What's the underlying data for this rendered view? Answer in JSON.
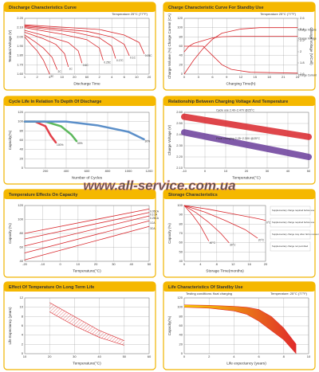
{
  "watermark": "www.all-service.com.ua",
  "chart_data": [
    {
      "type": "line",
      "title": "Discharge Characteristics Curve",
      "xlabel": "Discharge Time",
      "ylabel": "Terminal Voltage (V)",
      "annotations": [
        "Temperature 25°C (77°F)"
      ],
      "grid": true,
      "xlim": [
        0,
        10
      ],
      "xticks": [
        {
          "value": 0,
          "label": "1"
        },
        {
          "value": 1,
          "label": "2"
        },
        {
          "value": 2,
          "label": "4"
        },
        {
          "value": 3,
          "label": "10"
        },
        {
          "value": 4,
          "label": "20"
        },
        {
          "value": 5,
          "label": "60"
        },
        {
          "value": 6,
          "label": "2"
        },
        {
          "value": 7,
          "label": "4"
        },
        {
          "value": 8,
          "label": "6"
        },
        {
          "value": 9,
          "label": "10"
        },
        {
          "value": 10,
          "label": "20"
        }
      ],
      "ylim": [
        1.6,
        2.2
      ],
      "yticks": [
        {
          "value": 1.6,
          "label": "1.60"
        },
        {
          "value": 1.7,
          "label": "1.70"
        },
        {
          "value": 1.8,
          "label": "1.80"
        },
        {
          "value": 1.9,
          "label": "1.90"
        },
        {
          "value": 2,
          "label": "2.00"
        },
        {
          "value": 2.1,
          "label": "2.10"
        },
        {
          "value": 2.2,
          "label": "2.20"
        }
      ],
      "series": [
        {
          "name": "3C",
          "color": "#d9262b",
          "x": [
            0,
            0.5,
            1,
            1.5,
            2
          ],
          "values": [
            2.0,
            1.92,
            1.85,
            1.75,
            1.6
          ]
        },
        {
          "name": "2C",
          "color": "#d9262b",
          "x": [
            0,
            0.8,
            1.5,
            2.2,
            2.6
          ],
          "values": [
            2.02,
            1.95,
            1.88,
            1.78,
            1.65
          ]
        },
        {
          "name": "1C",
          "color": "#d9262b",
          "x": [
            0,
            1.5,
            2.5,
            3.2,
            3.5
          ],
          "values": [
            2.05,
            1.98,
            1.92,
            1.82,
            1.68
          ]
        },
        {
          "name": "0.6C",
          "color": "#d9262b",
          "x": [
            0,
            2,
            3.5,
            4.3,
            4.6
          ],
          "values": [
            2.07,
            2.0,
            1.94,
            1.85,
            1.72
          ]
        },
        {
          "name": "0.25C",
          "color": "#d9262b",
          "x": [
            0,
            3,
            5,
            6,
            6.3
          ],
          "values": [
            2.1,
            2.03,
            1.97,
            1.88,
            1.75
          ]
        },
        {
          "name": "0.17C",
          "color": "#d9262b",
          "x": [
            0,
            4,
            6,
            7,
            7.3
          ],
          "values": [
            2.11,
            2.05,
            1.99,
            1.9,
            1.77
          ]
        },
        {
          "name": "0.1C",
          "color": "#d9262b",
          "x": [
            0,
            5,
            7,
            8,
            8.4
          ],
          "values": [
            2.12,
            2.06,
            2.0,
            1.92,
            1.8
          ]
        },
        {
          "name": "0.05C",
          "color": "#d9262b",
          "x": [
            0,
            6,
            8,
            9.2,
            9.6
          ],
          "values": [
            2.13,
            2.08,
            2.02,
            1.94,
            1.82
          ]
        }
      ]
    },
    {
      "type": "line",
      "title": "Charge Characteristic Curve For Standby Use",
      "xlabel": "Charging Time(h)",
      "ylabel": "Charge Volume (%) Charge Current (CA)",
      "y2label": "Charge Voltage (V/Cell)",
      "annotations": [
        "Temperature 25°C (77°F)"
      ],
      "grid": true,
      "xlim": [
        0,
        24
      ],
      "xticks": [
        0,
        3,
        6,
        9,
        12,
        15,
        18,
        21,
        24
      ],
      "ylim": [
        0,
        120
      ],
      "yticks": [
        0,
        20,
        40,
        60,
        80,
        100,
        120
      ],
      "y2lim": [
        1.6,
        2.6
      ],
      "y2ticks": [
        1.6,
        1.8,
        2,
        2.2,
        2.4,
        2.6
      ],
      "series": [
        {
          "name": "Charge Volume",
          "color": "#d9262b",
          "x": [
            0,
            2,
            4,
            6,
            8,
            12,
            16,
            20,
            24
          ],
          "values": [
            0,
            30,
            55,
            75,
            88,
            97,
            100,
            100,
            100
          ]
        },
        {
          "name": "Charge Voltage",
          "color": "#d9262b",
          "axis": "y2",
          "x": [
            0,
            1,
            2,
            4,
            6,
            8,
            12,
            24
          ],
          "values": [
            2.0,
            2.1,
            2.15,
            2.2,
            2.25,
            2.27,
            2.28,
            2.28
          ]
        },
        {
          "name": "Charge Current",
          "color": "#d9262b",
          "x": [
            0,
            4,
            6,
            8,
            10,
            14,
            24
          ],
          "values": [
            60,
            60,
            40,
            20,
            10,
            4,
            2
          ]
        }
      ]
    },
    {
      "type": "line",
      "title": "Cycle Life In Relation To Depth Of Discharge",
      "xlabel": "Number of Cycles",
      "ylabel": "Capacity(%)",
      "grid": true,
      "xlim": [
        0,
        1200
      ],
      "xticks": [
        200,
        400,
        600,
        800,
        1000,
        1200
      ],
      "ylim": [
        0,
        120
      ],
      "yticks": [
        0,
        20,
        40,
        60,
        80,
        100,
        120
      ],
      "series": [
        {
          "name": "100%",
          "color": "#e3414a",
          "width": 2.5,
          "x": [
            0,
            100,
            200,
            250,
            300
          ],
          "values": [
            100,
            100,
            90,
            70,
            55
          ]
        },
        {
          "name": "50%",
          "color": "#5cb85c",
          "width": 2.5,
          "x": [
            0,
            200,
            350,
            450,
            500
          ],
          "values": [
            100,
            100,
            90,
            72,
            58
          ]
        },
        {
          "name": "30%",
          "color": "#5b8fc9",
          "width": 2.5,
          "x": [
            0,
            400,
            700,
            1000,
            1150
          ],
          "values": [
            100,
            100,
            92,
            78,
            62
          ]
        }
      ]
    },
    {
      "type": "line",
      "title": "Relationship Between Charging Voltage And Temperature",
      "xlabel": "Temperature(°C)",
      "ylabel": "Charge Voltage (V)",
      "grid": true,
      "xlim": [
        -10,
        50
      ],
      "xticks": [
        -10,
        0,
        10,
        20,
        30,
        40,
        50
      ],
      "ylim": [
        2.1,
        2.6
      ],
      "yticks": [
        {
          "value": 2.1,
          "label": "2.10"
        },
        {
          "value": 2.2,
          "label": "2.20"
        },
        {
          "value": 2.3,
          "label": "2.30"
        },
        {
          "value": 2.4,
          "label": "2.40"
        },
        {
          "value": 2.5,
          "label": "2.50"
        },
        {
          "value": 2.6,
          "label": "2.60"
        }
      ],
      "series": [
        {
          "name": "Cycle use 2.40~2.47V @25°C",
          "color": "#d9262b",
          "width": 8,
          "x": [
            -10,
            50
          ],
          "values": [
            2.56,
            2.38
          ]
        },
        {
          "name": "Float charging 2.25~2.30V @25°C",
          "color": "#6a3d9a",
          "width": 8,
          "x": [
            -10,
            50
          ],
          "values": [
            2.42,
            2.2
          ]
        }
      ]
    },
    {
      "type": "line",
      "title": "Temperature Effects On Capacity",
      "xlabel": "Temperature(°C)",
      "ylabel": "Capacity (%)",
      "grid": true,
      "xlim": [
        -20,
        50
      ],
      "xticks": [
        -20,
        -10,
        0,
        10,
        20,
        30,
        40,
        50
      ],
      "ylim": [
        40,
        120
      ],
      "yticks": [
        40,
        60,
        80,
        100,
        120
      ],
      "series": [
        {
          "name": "0.05CA",
          "color": "#d9262b",
          "x": [
            -20,
            50
          ],
          "values": [
            80,
            115
          ]
        },
        {
          "name": "0.1CA",
          "color": "#d9262b",
          "x": [
            -20,
            50
          ],
          "values": [
            72,
            110
          ]
        },
        {
          "name": "0.25CA",
          "color": "#d9262b",
          "x": [
            -20,
            50
          ],
          "values": [
            62,
            105
          ]
        },
        {
          "name": "1CA",
          "color": "#d9262b",
          "x": [
            -20,
            50
          ],
          "values": [
            52,
            98
          ]
        },
        {
          "name": "3CA",
          "color": "#d9262b",
          "x": [
            -20,
            50
          ],
          "values": [
            42,
            90
          ]
        }
      ]
    },
    {
      "type": "line",
      "title": "Storage Characteristics",
      "xlabel": "Storage Time(months)",
      "ylabel": "Capacity (%)",
      "grid": true,
      "xlim": [
        0,
        20
      ],
      "xticks": [
        0,
        4,
        8,
        12,
        16,
        20
      ],
      "ylim": [
        40,
        100
      ],
      "yticks": [
        40,
        50,
        60,
        70,
        80,
        90,
        100
      ],
      "notes": [
        "Supplementary charge required before use",
        "Supplementary charge required before use",
        "Supplementary charge may often fail to recover",
        "Supplementary charge not permitted"
      ],
      "series": [
        {
          "name": "40°C",
          "color": "#d9262b",
          "x": [
            0,
            2,
            4,
            6
          ],
          "values": [
            100,
            90,
            78,
            62
          ]
        },
        {
          "name": "30°C",
          "color": "#d9262b",
          "x": [
            0,
            3,
            6,
            9,
            11
          ],
          "values": [
            100,
            92,
            82,
            70,
            60
          ]
        },
        {
          "name": "20°C",
          "color": "#d9262b",
          "x": [
            0,
            5,
            10,
            15,
            18
          ],
          "values": [
            100,
            93,
            84,
            74,
            65
          ]
        },
        {
          "name": "0°C",
          "color": "#d9262b",
          "x": [
            0,
            6,
            12,
            18,
            20
          ],
          "values": [
            100,
            96,
            91,
            86,
            84
          ]
        }
      ]
    },
    {
      "type": "band",
      "title": "Effect Of Temperature On Long Term Life",
      "xlabel": "Temperature(°C)",
      "ylabel": "Life Expectancy (years)",
      "grid": true,
      "xlim": [
        10,
        60
      ],
      "xticks": [
        10,
        20,
        30,
        40,
        50,
        60
      ],
      "ylim": [
        0,
        12
      ],
      "yticks": [
        0,
        2,
        4,
        6,
        8,
        10,
        12
      ],
      "color": "#d9262b",
      "x": [
        20,
        30,
        40,
        50
      ],
      "high": [
        11,
        8,
        5,
        2.8
      ],
      "low": [
        9,
        6,
        3.5,
        1.8
      ]
    },
    {
      "type": "band",
      "title": "Life Characteristics Of Standby Use",
      "xlabel": "Life expectancy (years)",
      "ylabel": "Capacity(%)",
      "grid": true,
      "annotations": [
        "Testing conditions: float charging",
        "Temperature: 25°C (77°F)"
      ],
      "xlim": [
        0,
        10
      ],
      "xticks": [
        0,
        2,
        4,
        6,
        8,
        10
      ],
      "ylim": [
        0,
        120
      ],
      "yticks": [
        0,
        20,
        40,
        60,
        80,
        100,
        120
      ],
      "colors": [
        "#f6d000",
        "#e02b2b"
      ],
      "x": [
        0,
        2,
        4,
        5,
        6,
        7,
        8,
        9
      ],
      "high": [
        105,
        104,
        102,
        100,
        95,
        80,
        55,
        20
      ],
      "low": [
        100,
        98,
        92,
        85,
        70,
        50,
        30,
        0
      ]
    }
  ]
}
